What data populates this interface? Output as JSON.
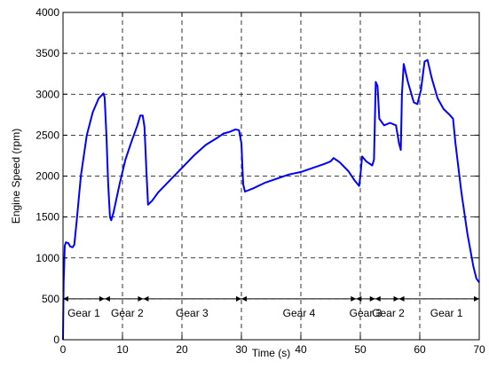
{
  "chart_data": {
    "type": "line",
    "title": "",
    "xlabel": "Time (s)",
    "ylabel": "Engine Speed (rpm)",
    "xlim": [
      0,
      70
    ],
    "ylim": [
      0,
      4000
    ],
    "x_ticks": [
      0,
      10,
      20,
      30,
      40,
      50,
      60,
      70
    ],
    "y_ticks": [
      0,
      500,
      1000,
      1500,
      2000,
      2500,
      3000,
      3500,
      4000
    ],
    "grid": true,
    "grid_style": "dashed",
    "line_color": "#0000ff",
    "series": [
      {
        "name": "",
        "points": [
          [
            0,
            0
          ],
          [
            0.1,
            700
          ],
          [
            0.3,
            1150
          ],
          [
            0.5,
            1190
          ],
          [
            0.9,
            1180
          ],
          [
            1.2,
            1140
          ],
          [
            1.6,
            1130
          ],
          [
            1.9,
            1160
          ],
          [
            2.3,
            1450
          ],
          [
            3.0,
            2000
          ],
          [
            4.0,
            2500
          ],
          [
            5.0,
            2780
          ],
          [
            6.0,
            2950
          ],
          [
            6.8,
            3010
          ],
          [
            7.0,
            2960
          ],
          [
            7.3,
            2500
          ],
          [
            7.6,
            1900
          ],
          [
            7.9,
            1500
          ],
          [
            8.1,
            1460
          ],
          [
            8.5,
            1560
          ],
          [
            9.5,
            1900
          ],
          [
            10.5,
            2200
          ],
          [
            11.5,
            2420
          ],
          [
            12.5,
            2620
          ],
          [
            13.0,
            2740
          ],
          [
            13.4,
            2740
          ],
          [
            13.7,
            2600
          ],
          [
            14.0,
            2100
          ],
          [
            14.3,
            1650
          ],
          [
            15.0,
            1700
          ],
          [
            16.0,
            1800
          ],
          [
            18.0,
            1950
          ],
          [
            20.0,
            2100
          ],
          [
            22.0,
            2250
          ],
          [
            24.0,
            2380
          ],
          [
            26.0,
            2470
          ],
          [
            27.0,
            2520
          ],
          [
            28.0,
            2540
          ],
          [
            29.0,
            2570
          ],
          [
            29.6,
            2560
          ],
          [
            30.0,
            2400
          ],
          [
            30.3,
            1900
          ],
          [
            30.6,
            1810
          ],
          [
            32.0,
            1850
          ],
          [
            34.0,
            1920
          ],
          [
            36.0,
            1970
          ],
          [
            38.0,
            2020
          ],
          [
            40.0,
            2050
          ],
          [
            42.0,
            2100
          ],
          [
            44.0,
            2150
          ],
          [
            45.0,
            2180
          ],
          [
            45.5,
            2220
          ],
          [
            46.5,
            2170
          ],
          [
            48.0,
            2060
          ],
          [
            49.0,
            1950
          ],
          [
            49.8,
            1880
          ],
          [
            50.0,
            2000
          ],
          [
            50.3,
            2240
          ],
          [
            51.0,
            2180
          ],
          [
            52.0,
            2130
          ],
          [
            52.3,
            2200
          ],
          [
            52.6,
            3150
          ],
          [
            52.9,
            3100
          ],
          [
            53.2,
            2700
          ],
          [
            54.0,
            2620
          ],
          [
            55.0,
            2650
          ],
          [
            56.0,
            2620
          ],
          [
            56.5,
            2400
          ],
          [
            56.8,
            2320
          ],
          [
            57.0,
            3000
          ],
          [
            57.3,
            3370
          ],
          [
            58.0,
            3150
          ],
          [
            59.0,
            2900
          ],
          [
            59.6,
            2880
          ],
          [
            60.2,
            3050
          ],
          [
            60.8,
            3400
          ],
          [
            61.3,
            3420
          ],
          [
            62.0,
            3200
          ],
          [
            63.0,
            2950
          ],
          [
            64.0,
            2820
          ],
          [
            65.0,
            2750
          ],
          [
            65.6,
            2700
          ],
          [
            66.0,
            2400
          ],
          [
            67.0,
            1800
          ],
          [
            68.0,
            1300
          ],
          [
            69.0,
            900
          ],
          [
            69.5,
            750
          ],
          [
            70.0,
            700
          ]
        ]
      }
    ],
    "gear_arrow_y": 500,
    "gear_boundaries": [
      0,
      7,
      13.5,
      30,
      49.3,
      52.5,
      56.5,
      70
    ],
    "gear_labels": [
      {
        "text": "Gear 1",
        "x": 3.5
      },
      {
        "text": "Gear 2",
        "x": 10.8
      },
      {
        "text": "Gear 3",
        "x": 21.7
      },
      {
        "text": "Gear 4",
        "x": 39.7
      },
      {
        "text": "Gear 3",
        "x": 50.9
      },
      {
        "text": "Gear 2",
        "x": 54.7
      },
      {
        "text": "Gear 1",
        "x": 64.5
      }
    ]
  }
}
